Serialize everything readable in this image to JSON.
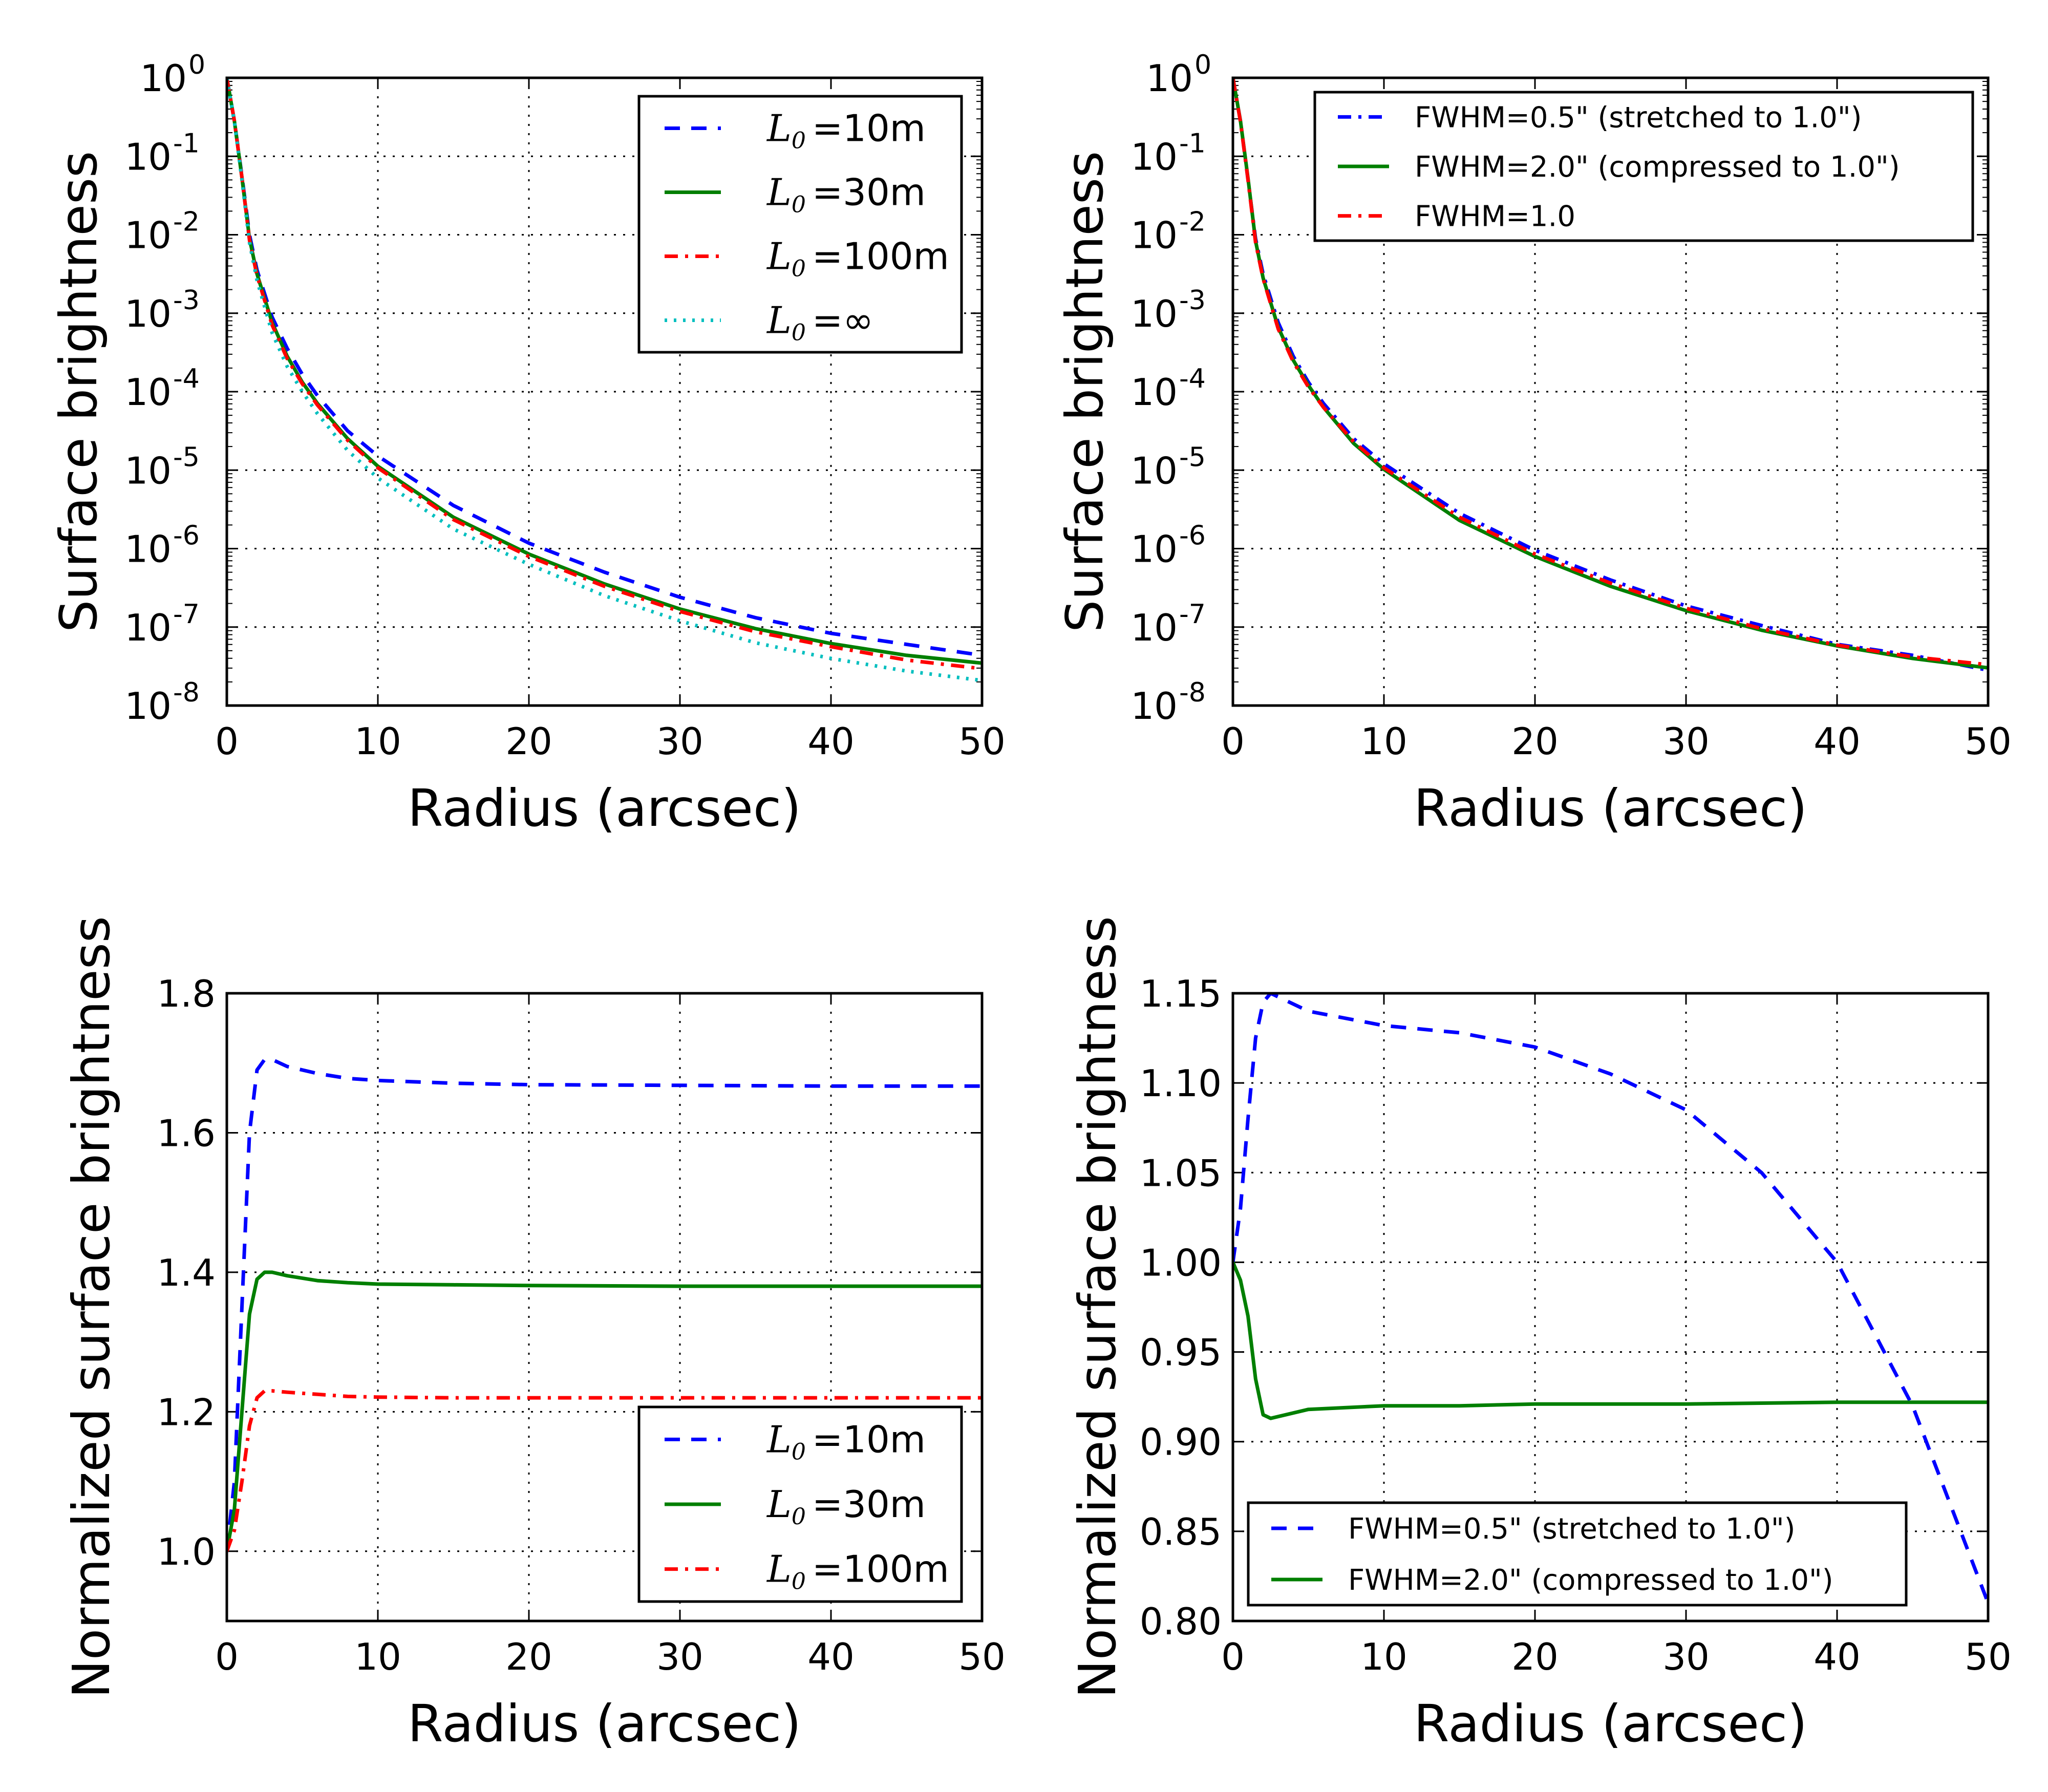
{
  "colors": {
    "blue": "#0000ff",
    "green": "#007f00",
    "red": "#ff0000",
    "cyan": "#00bfbf",
    "grid": "#000000",
    "frame": "#000000"
  },
  "chart_data": [
    {
      "id": "tl",
      "type": "line",
      "yscale": "log",
      "xlabel": "Radius (arcsec)",
      "ylabel": "Surface brightness",
      "xlim": [
        0,
        50
      ],
      "ylim": [
        1e-08,
        1
      ],
      "xticks": [
        "0",
        "10",
        "20",
        "30",
        "40",
        "50"
      ],
      "yticks": [
        "10-8",
        "10-7",
        "10-6",
        "10-5",
        "10-4",
        "10-3",
        "10-2",
        "10-1",
        "100"
      ],
      "grid": true,
      "legend_position": "top-right",
      "series": [
        {
          "name_math": "L0",
          "name_rest": "=10m",
          "color": "blue",
          "style": "dashed",
          "x": [
            0,
            0.5,
            1,
            1.5,
            2,
            3,
            4,
            5,
            6,
            8,
            10,
            15,
            20,
            25,
            30,
            35,
            40,
            45,
            50
          ],
          "logy": [
            0,
            -0.55,
            -1.25,
            -2.0,
            -2.45,
            -3.05,
            -3.45,
            -3.78,
            -4.05,
            -4.5,
            -4.82,
            -5.45,
            -5.93,
            -6.3,
            -6.62,
            -6.88,
            -7.08,
            -7.22,
            -7.36
          ]
        },
        {
          "name_math": "L0",
          "name_rest": "=30m",
          "color": "green",
          "style": "solid",
          "x": [
            0,
            0.5,
            1,
            1.5,
            2,
            3,
            4,
            5,
            6,
            8,
            10,
            15,
            20,
            25,
            30,
            35,
            40,
            45,
            50
          ],
          "logy": [
            0,
            -0.55,
            -1.27,
            -2.05,
            -2.5,
            -3.12,
            -3.55,
            -3.88,
            -4.15,
            -4.6,
            -4.95,
            -5.6,
            -6.07,
            -6.45,
            -6.77,
            -7.02,
            -7.21,
            -7.36,
            -7.46
          ]
        },
        {
          "name_math": "L0",
          "name_rest": "=100m",
          "color": "red",
          "style": "dashdot",
          "x": [
            0,
            0.5,
            1,
            1.5,
            2,
            3,
            4,
            5,
            6,
            8,
            10,
            15,
            20,
            25,
            30,
            35,
            40,
            45,
            50
          ],
          "logy": [
            0,
            -0.55,
            -1.27,
            -2.07,
            -2.52,
            -3.15,
            -3.58,
            -3.9,
            -4.17,
            -4.62,
            -4.97,
            -5.63,
            -6.1,
            -6.48,
            -6.8,
            -7.06,
            -7.25,
            -7.42,
            -7.53
          ]
        },
        {
          "name_math": "L0",
          "name_rest": "=∞",
          "color": "cyan",
          "style": "dotted",
          "x": [
            0,
            0.5,
            1,
            1.5,
            2,
            3,
            4,
            5,
            6,
            8,
            10,
            15,
            20,
            25,
            30,
            35,
            40,
            45,
            50
          ],
          "logy": [
            0,
            -0.56,
            -1.3,
            -2.1,
            -2.58,
            -3.25,
            -3.68,
            -4.0,
            -4.28,
            -4.75,
            -5.1,
            -5.75,
            -6.2,
            -6.6,
            -6.92,
            -7.2,
            -7.4,
            -7.56,
            -7.68
          ]
        }
      ]
    },
    {
      "id": "tr",
      "type": "line",
      "yscale": "log",
      "xlabel": "Radius (arcsec)",
      "ylabel": "Surface brightness",
      "xlim": [
        0,
        50
      ],
      "ylim": [
        1e-08,
        1
      ],
      "xticks": [
        "0",
        "10",
        "20",
        "30",
        "40",
        "50"
      ],
      "yticks": [
        "10-8",
        "10-7",
        "10-6",
        "10-5",
        "10-4",
        "10-3",
        "10-2",
        "10-1",
        "100"
      ],
      "grid": true,
      "legend_position": "top-right",
      "series": [
        {
          "name": "FWHM=0.5\" (stretched to 1.0\")",
          "color": "blue",
          "style": "dashdot",
          "x": [
            0,
            0.5,
            1,
            1.5,
            2,
            3,
            4,
            5,
            6,
            8,
            10,
            15,
            20,
            25,
            30,
            35,
            40,
            45,
            50
          ],
          "logy": [
            0,
            -0.55,
            -1.3,
            -2.05,
            -2.5,
            -3.12,
            -3.55,
            -3.88,
            -4.15,
            -4.6,
            -4.92,
            -5.55,
            -6.02,
            -6.4,
            -6.73,
            -6.98,
            -7.22,
            -7.36,
            -7.55
          ]
        },
        {
          "name": "FWHM=2.0\" (compressed to 1.0\")",
          "color": "green",
          "style": "solid",
          "x": [
            0,
            0.5,
            1,
            1.5,
            2,
            3,
            4,
            5,
            6,
            8,
            10,
            15,
            20,
            25,
            30,
            35,
            40,
            45,
            50
          ],
          "logy": [
            0,
            -0.55,
            -1.28,
            -2.08,
            -2.55,
            -3.18,
            -3.6,
            -3.92,
            -4.2,
            -4.66,
            -4.99,
            -5.64,
            -6.1,
            -6.48,
            -6.79,
            -7.04,
            -7.24,
            -7.4,
            -7.52
          ]
        },
        {
          "name": "FWHM=1.0",
          "color": "red",
          "style": "dashdot",
          "x": [
            0,
            0.5,
            1,
            1.5,
            2,
            3,
            4,
            5,
            6,
            8,
            10,
            15,
            20,
            25,
            30,
            35,
            40,
            45,
            50
          ],
          "logy": [
            0,
            -0.56,
            -1.3,
            -2.1,
            -2.56,
            -3.2,
            -3.62,
            -3.94,
            -4.2,
            -4.64,
            -4.97,
            -5.6,
            -6.07,
            -6.44,
            -6.76,
            -7.02,
            -7.23,
            -7.38,
            -7.48
          ]
        }
      ]
    },
    {
      "id": "bl",
      "type": "line",
      "yscale": "linear",
      "xlabel": "Radius (arcsec)",
      "ylabel": "Normalized surface brightness",
      "xlim": [
        0,
        50
      ],
      "ylim": [
        0.9,
        1.8
      ],
      "xticks": [
        "0",
        "10",
        "20",
        "30",
        "40",
        "50"
      ],
      "ytick_values": [
        1.0,
        1.2,
        1.4,
        1.6,
        1.8
      ],
      "yticks": [
        "1.0",
        "1.2",
        "1.4",
        "1.6",
        "1.8"
      ],
      "grid": true,
      "legend_position": "bottom-right",
      "series": [
        {
          "name_math": "L0",
          "name_rest": "=10m",
          "color": "blue",
          "style": "dashed",
          "x": [
            0,
            0.5,
            1,
            1.5,
            2,
            2.5,
            3,
            4,
            6,
            8,
            10,
            15,
            20,
            30,
            40,
            50
          ],
          "y": [
            1.0,
            1.1,
            1.35,
            1.6,
            1.69,
            1.705,
            1.705,
            1.695,
            1.685,
            1.678,
            1.675,
            1.671,
            1.669,
            1.668,
            1.667,
            1.667
          ]
        },
        {
          "name_math": "L0",
          "name_rest": "=30m",
          "color": "green",
          "style": "solid",
          "x": [
            0,
            0.5,
            1,
            1.5,
            2,
            2.5,
            3,
            4,
            6,
            8,
            10,
            15,
            20,
            30,
            40,
            50
          ],
          "y": [
            1.0,
            1.06,
            1.2,
            1.34,
            1.39,
            1.4,
            1.4,
            1.395,
            1.388,
            1.385,
            1.383,
            1.382,
            1.381,
            1.38,
            1.38,
            1.38
          ]
        },
        {
          "name_math": "L0",
          "name_rest": "=100m",
          "color": "red",
          "style": "dashdot",
          "x": [
            0,
            0.5,
            1,
            1.5,
            2,
            2.5,
            3,
            4,
            6,
            8,
            10,
            15,
            20,
            30,
            40,
            50
          ],
          "y": [
            1.0,
            1.03,
            1.1,
            1.18,
            1.22,
            1.23,
            1.23,
            1.228,
            1.225,
            1.222,
            1.221,
            1.22,
            1.22,
            1.22,
            1.22,
            1.22
          ]
        }
      ]
    },
    {
      "id": "br",
      "type": "line",
      "yscale": "linear",
      "xlabel": "Radius (arcsec)",
      "ylabel": "Normalized surface brightness",
      "xlim": [
        0,
        50
      ],
      "ylim": [
        0.8,
        1.15
      ],
      "xticks": [
        "0",
        "10",
        "20",
        "30",
        "40",
        "50"
      ],
      "ytick_values": [
        0.8,
        0.85,
        0.9,
        0.95,
        1.0,
        1.05,
        1.1,
        1.15
      ],
      "yticks": [
        "0.80",
        "0.85",
        "0.90",
        "0.95",
        "1.00",
        "1.05",
        "1.10",
        "1.15"
      ],
      "grid": true,
      "legend_position": "bottom-left",
      "series": [
        {
          "name": "FWHM=0.5\" (stretched to 1.0\")",
          "color": "blue",
          "style": "dashed",
          "x": [
            0,
            0.5,
            1,
            1.5,
            2,
            2.5,
            3,
            5,
            10,
            15,
            20,
            25,
            30,
            35,
            40,
            45,
            50
          ],
          "y": [
            1.0,
            1.03,
            1.08,
            1.125,
            1.145,
            1.15,
            1.148,
            1.14,
            1.132,
            1.128,
            1.12,
            1.105,
            1.085,
            1.05,
            1.0,
            0.92,
            0.81
          ]
        },
        {
          "name": "FWHM=2.0\" (compressed to 1.0\")",
          "color": "green",
          "style": "solid",
          "x": [
            0,
            0.5,
            1,
            1.5,
            2,
            2.5,
            3,
            5,
            10,
            15,
            20,
            30,
            40,
            50
          ],
          "y": [
            1.0,
            0.99,
            0.97,
            0.935,
            0.915,
            0.913,
            0.914,
            0.918,
            0.92,
            0.92,
            0.921,
            0.921,
            0.922,
            0.922
          ]
        }
      ]
    }
  ]
}
